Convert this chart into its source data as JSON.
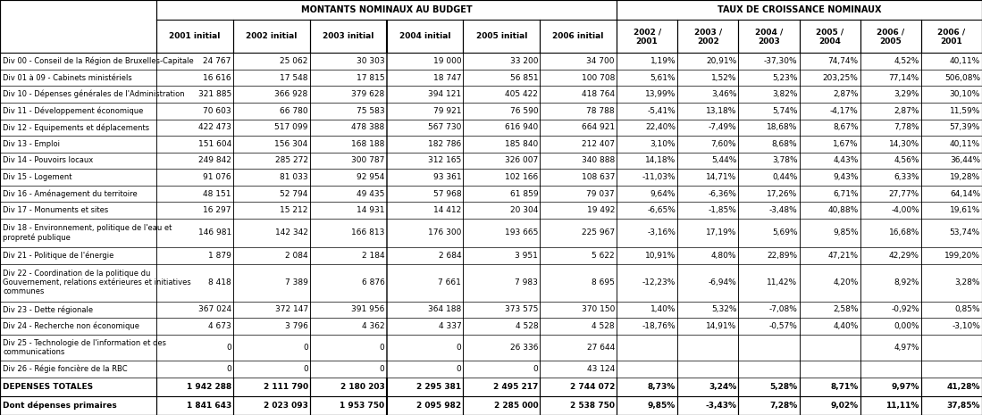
{
  "header1": "MONTANTS NOMINAUX AU BUDGET",
  "header2": "TAUX DE CROISSANCE NOMINAUX",
  "col_headers_montants": [
    "2001 initial",
    "2002 initial",
    "2003 initial",
    "2004 initial",
    "2005 initial",
    "2006 initial"
  ],
  "col_headers_taux": [
    "2002 /\n2001",
    "2003 /\n2002",
    "2004 /\n2003",
    "2005 /\n2004",
    "2006 /\n2005",
    "2006 /\n2001"
  ],
  "rows": [
    {
      "label": "Div 00 - Conseil de la Région de Bruxelles-Capitale",
      "montants": [
        "24 767",
        "25 062",
        "30 303",
        "19 000",
        "33 200",
        "34 700"
      ],
      "taux": [
        "1,19%",
        "20,91%",
        "-37,30%",
        "74,74%",
        "4,52%",
        "40,11%"
      ]
    },
    {
      "label": "Div 01 à 09 - Cabinets ministériels",
      "montants": [
        "16 616",
        "17 548",
        "17 815",
        "18 747",
        "56 851",
        "100 708"
      ],
      "taux": [
        "5,61%",
        "1,52%",
        "5,23%",
        "203,25%",
        "77,14%",
        "506,08%"
      ]
    },
    {
      "label": "Div 10 - Dépenses générales de l'Administration",
      "montants": [
        "321 885",
        "366 928",
        "379 628",
        "394 121",
        "405 422",
        "418 764"
      ],
      "taux": [
        "13,99%",
        "3,46%",
        "3,82%",
        "2,87%",
        "3,29%",
        "30,10%"
      ]
    },
    {
      "label": "Div 11 - Développement économique",
      "montants": [
        "70 603",
        "66 780",
        "75 583",
        "79 921",
        "76 590",
        "78 788"
      ],
      "taux": [
        "-5,41%",
        "13,18%",
        "5,74%",
        "-4,17%",
        "2,87%",
        "11,59%"
      ]
    },
    {
      "label": "Div 12 - Equipements et déplacements",
      "montants": [
        "422 473",
        "517 099",
        "478 388",
        "567 730",
        "616 940",
        "664 921"
      ],
      "taux": [
        "22,40%",
        "-7,49%",
        "18,68%",
        "8,67%",
        "7,78%",
        "57,39%"
      ]
    },
    {
      "label": "Div 13 - Emploi",
      "montants": [
        "151 604",
        "156 304",
        "168 188",
        "182 786",
        "185 840",
        "212 407"
      ],
      "taux": [
        "3,10%",
        "7,60%",
        "8,68%",
        "1,67%",
        "14,30%",
        "40,11%"
      ]
    },
    {
      "label": "Div 14 - Pouvoirs locaux",
      "montants": [
        "249 842",
        "285 272",
        "300 787",
        "312 165",
        "326 007",
        "340 888"
      ],
      "taux": [
        "14,18%",
        "5,44%",
        "3,78%",
        "4,43%",
        "4,56%",
        "36,44%"
      ]
    },
    {
      "label": "Div 15 - Logement",
      "montants": [
        "91 076",
        "81 033",
        "92 954",
        "93 361",
        "102 166",
        "108 637"
      ],
      "taux": [
        "-11,03%",
        "14,71%",
        "0,44%",
        "9,43%",
        "6,33%",
        "19,28%"
      ]
    },
    {
      "label": "Div 16 - Aménagement du territoire",
      "montants": [
        "48 151",
        "52 794",
        "49 435",
        "57 968",
        "61 859",
        "79 037"
      ],
      "taux": [
        "9,64%",
        "-6,36%",
        "17,26%",
        "6,71%",
        "27,77%",
        "64,14%"
      ]
    },
    {
      "label": "Div 17 - Monuments et sites",
      "montants": [
        "16 297",
        "15 212",
        "14 931",
        "14 412",
        "20 304",
        "19 492"
      ],
      "taux": [
        "-6,65%",
        "-1,85%",
        "-3,48%",
        "40,88%",
        "-4,00%",
        "19,61%"
      ]
    },
    {
      "label": "Div 18 - Environnement, politique de l'eau et\npropreté publique",
      "montants": [
        "146 981",
        "142 342",
        "166 813",
        "176 300",
        "193 665",
        "225 967"
      ],
      "taux": [
        "-3,16%",
        "17,19%",
        "5,69%",
        "9,85%",
        "16,68%",
        "53,74%"
      ]
    },
    {
      "label": "Div 21 - Politique de l'énergie",
      "montants": [
        "1 879",
        "2 084",
        "2 184",
        "2 684",
        "3 951",
        "5 622"
      ],
      "taux": [
        "10,91%",
        "4,80%",
        "22,89%",
        "47,21%",
        "42,29%",
        "199,20%"
      ]
    },
    {
      "label": "Div 22 - Coordination de la politique du\nGouvernement, relations extérieures et initiatives\ncommunes",
      "montants": [
        "8 418",
        "7 389",
        "6 876",
        "7 661",
        "7 983",
        "8 695"
      ],
      "taux": [
        "-12,23%",
        "-6,94%",
        "11,42%",
        "4,20%",
        "8,92%",
        "3,28%"
      ]
    },
    {
      "label": "Div 23 - Dette régionale",
      "montants": [
        "367 024",
        "372 147",
        "391 956",
        "364 188",
        "373 575",
        "370 150"
      ],
      "taux": [
        "1,40%",
        "5,32%",
        "-7,08%",
        "2,58%",
        "-0,92%",
        "0,85%"
      ]
    },
    {
      "label": "Div 24 - Recherche non économique",
      "montants": [
        "4 673",
        "3 796",
        "4 362",
        "4 337",
        "4 528",
        "4 528"
      ],
      "taux": [
        "-18,76%",
        "14,91%",
        "-0,57%",
        "4,40%",
        "0,00%",
        "-3,10%"
      ]
    },
    {
      "label": "Div 25 - Technologie de l'information et des\ncommunications",
      "montants": [
        "0",
        "0",
        "0",
        "0",
        "26 336",
        "27 644"
      ],
      "taux": [
        "",
        "",
        "",
        "",
        "4,97%",
        ""
      ]
    },
    {
      "label": "Div 26 - Régie foncière de la RBC",
      "montants": [
        "0",
        "0",
        "0",
        "0",
        "0",
        "43 124"
      ],
      "taux": [
        "",
        "",
        "",
        "",
        "",
        ""
      ]
    }
  ],
  "totals": {
    "label": "DEPENSES TOTALES",
    "montants": [
      "1 942 288",
      "2 111 790",
      "2 180 203",
      "2 295 381",
      "2 495 217",
      "2 744 072"
    ],
    "taux": [
      "8,73%",
      "3,24%",
      "5,28%",
      "8,71%",
      "9,97%",
      "41,28%"
    ]
  },
  "primaires": {
    "label": "Dont dépenses primaires",
    "montants": [
      "1 841 643",
      "2 023 093",
      "1 953 750",
      "2 095 982",
      "2 285 000",
      "2 538 750"
    ],
    "taux": [
      "9,85%",
      "-3,43%",
      "7,28%",
      "9,02%",
      "11,11%",
      "37,85%"
    ]
  }
}
